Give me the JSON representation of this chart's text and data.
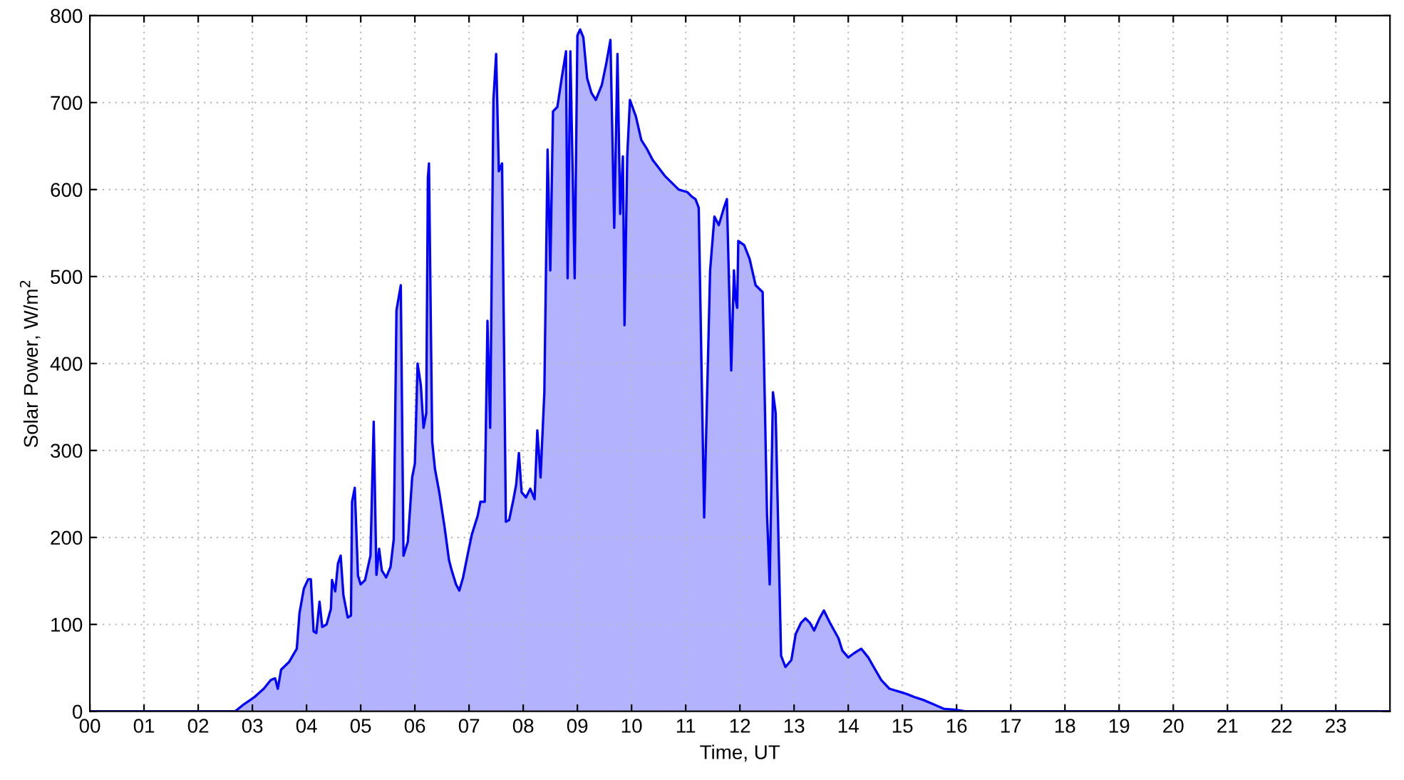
{
  "chart_data": {
    "type": "area",
    "xlabel": "Time, UT",
    "ylabel": "Solar Power, W/m$^{2}$",
    "xlim": [
      0,
      24
    ],
    "ylim": [
      0,
      800
    ],
    "xticks": [
      {
        "value": 0,
        "label": "00"
      },
      {
        "value": 1,
        "label": "01"
      },
      {
        "value": 2,
        "label": "02"
      },
      {
        "value": 3,
        "label": "03"
      },
      {
        "value": 4,
        "label": "04"
      },
      {
        "value": 5,
        "label": "05"
      },
      {
        "value": 6,
        "label": "06"
      },
      {
        "value": 7,
        "label": "07"
      },
      {
        "value": 8,
        "label": "08"
      },
      {
        "value": 9,
        "label": "09"
      },
      {
        "value": 10,
        "label": "10"
      },
      {
        "value": 11,
        "label": "11"
      },
      {
        "value": 12,
        "label": "12"
      },
      {
        "value": 13,
        "label": "13"
      },
      {
        "value": 14,
        "label": "14"
      },
      {
        "value": 15,
        "label": "15"
      },
      {
        "value": 16,
        "label": "16"
      },
      {
        "value": 17,
        "label": "17"
      },
      {
        "value": 18,
        "label": "18"
      },
      {
        "value": 19,
        "label": "19"
      },
      {
        "value": 20,
        "label": "20"
      },
      {
        "value": 21,
        "label": "21"
      },
      {
        "value": 22,
        "label": "22"
      },
      {
        "value": 23,
        "label": "23"
      }
    ],
    "yticks": [
      0,
      100,
      200,
      300,
      400,
      500,
      600,
      700,
      800
    ],
    "grid": true,
    "series": [
      {
        "color": "#0000ff",
        "x": [
          0,
          2.68,
          2.82,
          3.03,
          3.21,
          3.34,
          3.42,
          3.47,
          3.53,
          3.68,
          3.82,
          3.87,
          3.95,
          4.03,
          4.08,
          4.13,
          4.18,
          4.24,
          4.29,
          4.37,
          4.45,
          4.47,
          4.53,
          4.58,
          4.63,
          4.68,
          4.76,
          4.82,
          4.84,
          4.89,
          4.95,
          5.0,
          5.08,
          5.18,
          5.24,
          5.29,
          5.34,
          5.39,
          5.47,
          5.55,
          5.61,
          5.66,
          5.74,
          5.79,
          5.87,
          5.95,
          6.0,
          6.05,
          6.11,
          6.16,
          6.21,
          6.24,
          6.26,
          6.32,
          6.37,
          6.45,
          6.55,
          6.63,
          6.68,
          6.76,
          6.82,
          6.89,
          6.97,
          7.05,
          7.16,
          7.21,
          7.29,
          7.34,
          7.39,
          7.45,
          7.5,
          7.55,
          7.61,
          7.68,
          7.74,
          7.82,
          7.87,
          7.92,
          7.97,
          8.05,
          8.13,
          8.21,
          8.26,
          8.32,
          8.39,
          8.45,
          8.5,
          8.55,
          8.63,
          8.71,
          8.79,
          8.82,
          8.87,
          8.95,
          9.0,
          9.05,
          9.11,
          9.18,
          9.26,
          9.34,
          9.45,
          9.53,
          9.61,
          9.68,
          9.74,
          9.79,
          9.84,
          9.87,
          9.92,
          9.97,
          10.08,
          10.18,
          10.29,
          10.39,
          10.5,
          10.61,
          10.74,
          10.87,
          11.03,
          11.11,
          11.18,
          11.24,
          11.34,
          11.45,
          11.53,
          11.61,
          11.71,
          11.76,
          11.84,
          11.89,
          11.92,
          11.95,
          11.97,
          12.08,
          12.18,
          12.29,
          12.42,
          12.5,
          12.55,
          12.61,
          12.66,
          12.76,
          12.84,
          12.95,
          13.03,
          13.13,
          13.21,
          13.29,
          13.37,
          13.47,
          13.55,
          13.66,
          13.74,
          13.82,
          13.89,
          14.0,
          14.11,
          14.24,
          14.37,
          14.47,
          14.61,
          14.76,
          14.92,
          15.08,
          15.24,
          15.39,
          15.58,
          15.76,
          15.97,
          16.16,
          24
        ],
        "values": [
          0,
          0,
          7,
          16,
          26,
          36,
          38,
          26,
          48,
          57,
          72,
          113,
          141,
          152,
          152,
          92,
          90,
          126,
          97,
          100,
          118,
          151,
          138,
          170,
          179,
          134,
          108,
          110,
          241,
          257,
          156,
          146,
          151,
          179,
          333,
          157,
          187,
          162,
          154,
          166,
          198,
          461,
          490,
          179,
          195,
          269,
          285,
          400,
          375,
          326,
          343,
          613,
          630,
          310,
          279,
          252,
          211,
          174,
          162,
          146,
          139,
          154,
          179,
          203,
          225,
          241,
          241,
          449,
          326,
          703,
          756,
          621,
          630,
          218,
          220,
          244,
          261,
          297,
          252,
          246,
          256,
          244,
          323,
          269,
          367,
          646,
          507,
          690,
          695,
          728,
          759,
          498,
          759,
          498,
          777,
          784,
          775,
          728,
          711,
          703,
          720,
          744,
          772,
          556,
          756,
          572,
          638,
          444,
          638,
          703,
          684,
          657,
          646,
          634,
          625,
          616,
          608,
          600,
          597,
          592,
          589,
          579,
          223,
          507,
          569,
          559,
          580,
          589,
          392,
          507,
          474,
          464,
          541,
          536,
          520,
          490,
          482,
          228,
          146,
          367,
          343,
          64,
          51,
          59,
          89,
          102,
          107,
          102,
          93,
          107,
          116,
          102,
          93,
          84,
          70,
          62,
          67,
          72,
          62,
          51,
          36,
          26,
          23,
          20,
          16,
          13,
          8,
          3,
          2,
          0,
          0
        ]
      }
    ]
  }
}
